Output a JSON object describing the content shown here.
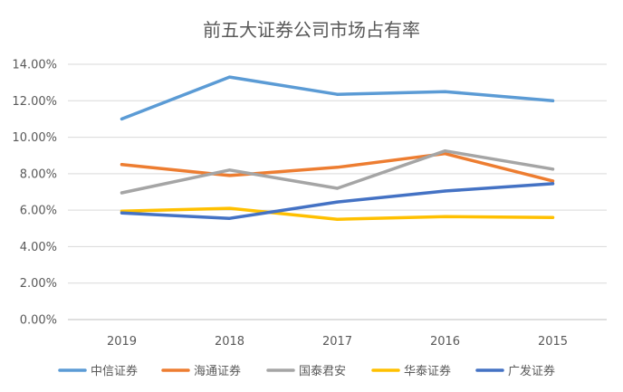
{
  "chart_data": {
    "type": "line",
    "title": "前五大证券公司市场占有率",
    "xlabel": "",
    "ylabel": "",
    "categories": [
      "2019",
      "2018",
      "2017",
      "2016",
      "2015"
    ],
    "ylim": [
      0,
      14
    ],
    "ytick_values": [
      0,
      2,
      4,
      6,
      8,
      10,
      12,
      14
    ],
    "ytick_labels": [
      "0.00%",
      "2.00%",
      "4.00%",
      "6.00%",
      "8.00%",
      "10.00%",
      "12.00%",
      "14.00%"
    ],
    "grid": true,
    "legend_position": "bottom",
    "series": [
      {
        "name": "中信证券",
        "color": "#5B9BD5",
        "values": [
          11.0,
          13.3,
          12.35,
          12.5,
          12.0
        ]
      },
      {
        "name": "海通证券",
        "color": "#ED7D31",
        "values": [
          8.5,
          7.9,
          8.35,
          9.1,
          7.6
        ]
      },
      {
        "name": "国泰君安",
        "color": "#A5A5A5",
        "values": [
          6.95,
          8.2,
          7.2,
          9.25,
          8.25
        ]
      },
      {
        "name": "华泰证券",
        "color": "#FFC000",
        "values": [
          5.95,
          6.1,
          5.5,
          5.65,
          5.6
        ]
      },
      {
        "name": "广发证券",
        "color": "#4472C4",
        "values": [
          5.85,
          5.55,
          6.45,
          7.05,
          7.45
        ]
      }
    ]
  }
}
